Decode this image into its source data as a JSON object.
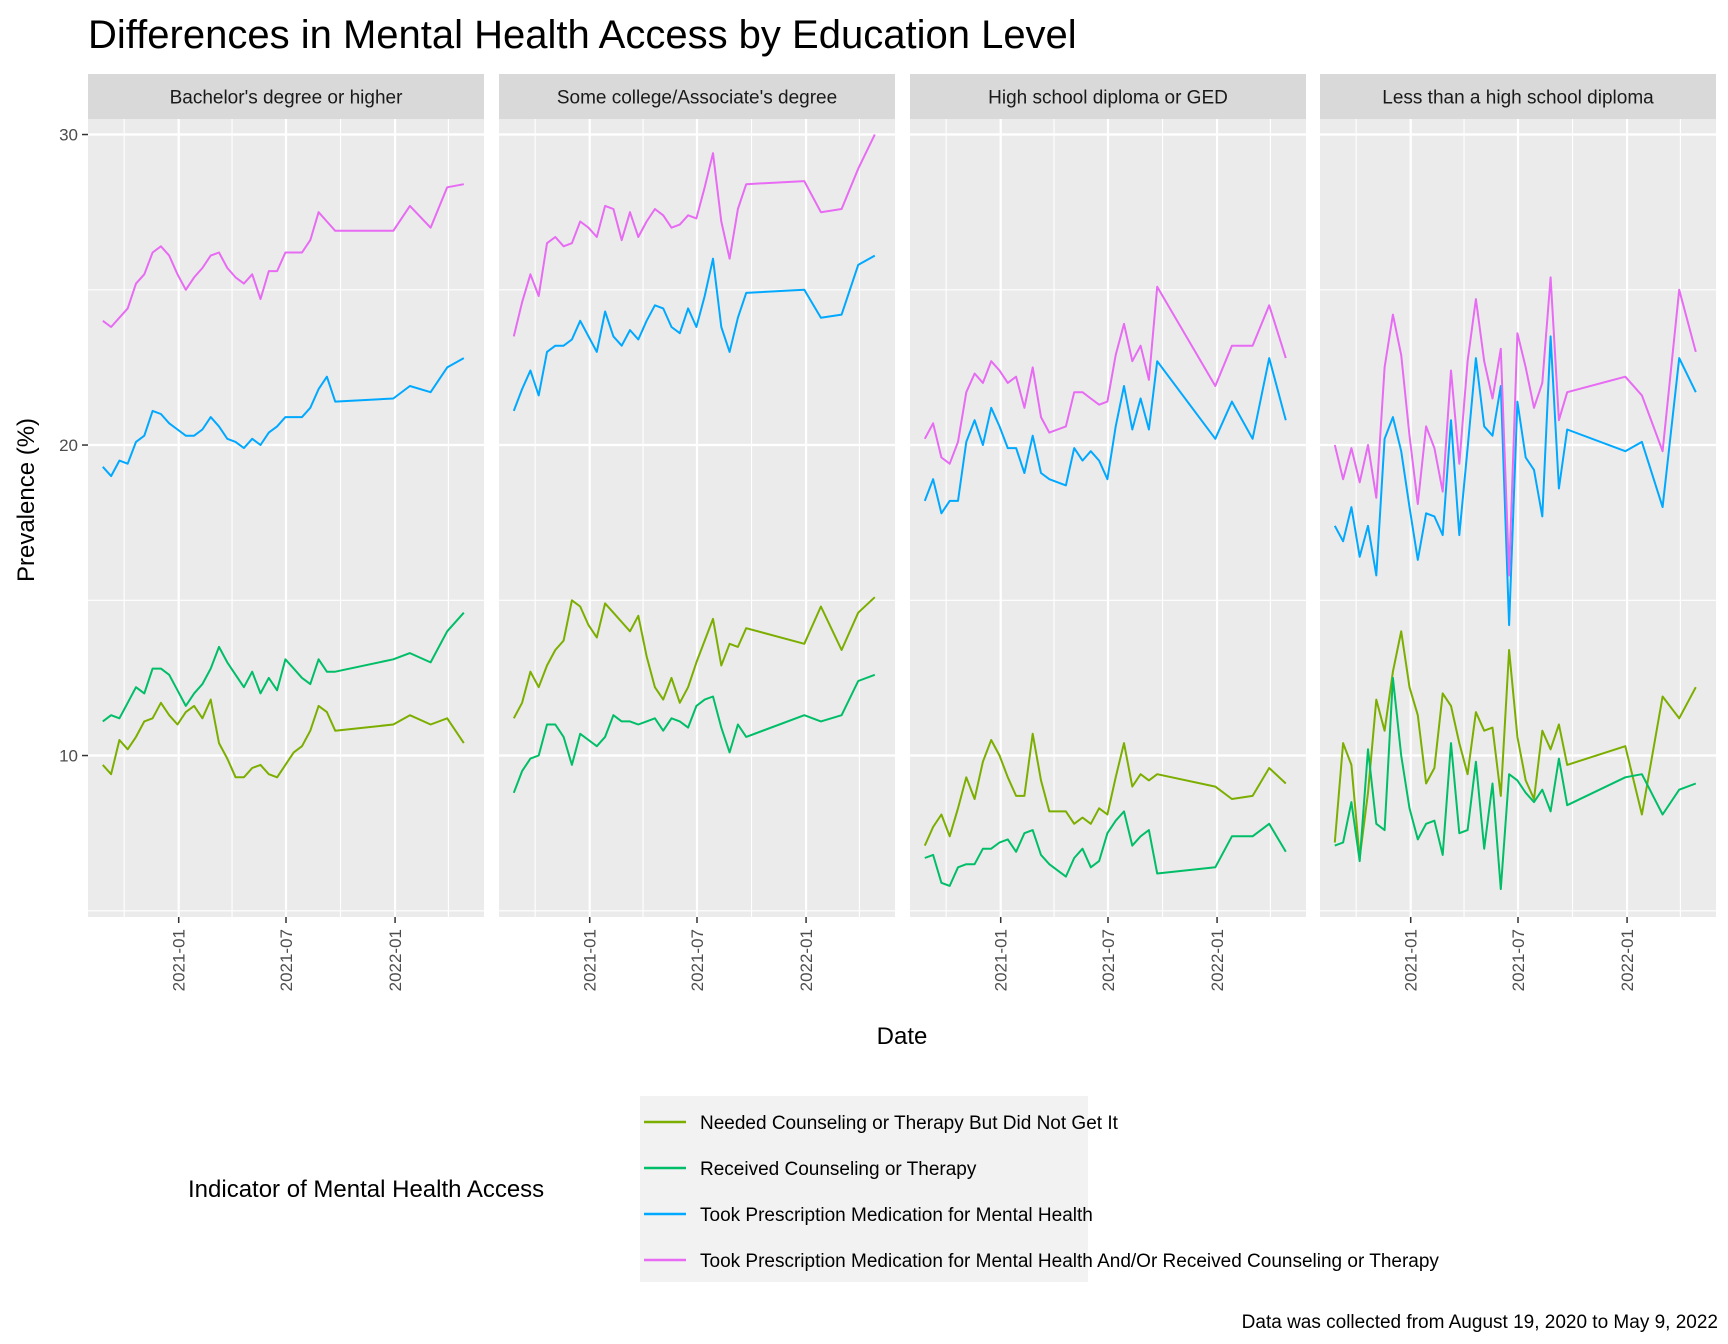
{
  "chart_data": {
    "type": "line",
    "title": "Differences in Mental Health Access by Education Level",
    "xlabel": "Date",
    "ylabel": "Prevalence (%)",
    "caption": "Data was collected from August 19, 2020 to May 9, 2022",
    "xlim": [
      "2020-08-01",
      "2022-05-31"
    ],
    "ylim": [
      4.8,
      30.5
    ],
    "y_ticks": [
      10,
      20,
      30
    ],
    "x_ticks": [
      "2021-01",
      "2021-07",
      "2022-01"
    ],
    "grid": true,
    "legend": {
      "title": "Indicator of Mental Health Access",
      "position": "bottom"
    },
    "series_defs": [
      {
        "key": "needed",
        "name": "Needed Counseling or Therapy But Did Not Get It",
        "color": "#7CAE00"
      },
      {
        "key": "received",
        "name": "Received Counseling or Therapy",
        "color": "#00BE67"
      },
      {
        "key": "prescription",
        "name": "Took Prescription Medication for Mental Health",
        "color": "#00A9FF"
      },
      {
        "key": "either",
        "name": "Took Prescription Medication for Mental Health And/Or Received Counseling or Therapy",
        "color": "#E76BF3"
      }
    ],
    "dates": [
      "2020-08-26",
      "2020-09-09",
      "2020-09-23",
      "2020-10-07",
      "2020-10-21",
      "2020-11-04",
      "2020-11-18",
      "2020-12-02",
      "2020-12-16",
      "2020-12-30",
      "2021-01-13",
      "2021-01-27",
      "2021-02-10",
      "2021-02-24",
      "2021-03-10",
      "2021-03-24",
      "2021-04-07",
      "2021-04-21",
      "2021-05-05",
      "2021-05-19",
      "2021-06-02",
      "2021-06-16",
      "2021-06-30",
      "2021-07-14",
      "2021-07-28",
      "2021-08-11",
      "2021-08-25",
      "2021-09-08",
      "2021-09-22",
      "2021-12-29",
      "2022-01-26",
      "2022-03-02",
      "2022-03-30",
      "2022-04-27"
    ],
    "panels": [
      {
        "label": "Bachelor's degree or higher",
        "series": {
          "needed": [
            9.7,
            9.4,
            10.5,
            10.2,
            10.6,
            11.1,
            11.2,
            11.7,
            11.3,
            11.0,
            11.4,
            11.6,
            11.2,
            11.8,
            10.4,
            9.9,
            9.3,
            9.3,
            9.6,
            9.7,
            9.4,
            9.3,
            9.7,
            10.1,
            10.3,
            10.8,
            11.6,
            11.4,
            10.8,
            11.0,
            11.3,
            11.0,
            11.2,
            10.4
          ],
          "received": [
            11.1,
            11.3,
            11.2,
            11.7,
            12.2,
            12.0,
            12.8,
            12.8,
            12.6,
            12.1,
            11.6,
            12.0,
            12.3,
            12.8,
            13.5,
            13.0,
            12.6,
            12.2,
            12.7,
            12.0,
            12.5,
            12.1,
            13.1,
            12.8,
            12.5,
            12.3,
            13.1,
            12.7,
            12.7,
            13.1,
            13.3,
            13.0,
            14.0,
            14.6
          ],
          "prescription": [
            19.3,
            19.0,
            19.5,
            19.4,
            20.1,
            20.3,
            21.1,
            21.0,
            20.7,
            20.5,
            20.3,
            20.3,
            20.5,
            20.9,
            20.6,
            20.2,
            20.1,
            19.9,
            20.2,
            20.0,
            20.4,
            20.6,
            20.9,
            20.9,
            20.9,
            21.2,
            21.8,
            22.2,
            21.4,
            21.5,
            21.9,
            21.7,
            22.5,
            22.8
          ],
          "either": [
            24.0,
            23.8,
            24.1,
            24.4,
            25.2,
            25.5,
            26.2,
            26.4,
            26.1,
            25.5,
            25.0,
            25.4,
            25.7,
            26.1,
            26.2,
            25.7,
            25.4,
            25.2,
            25.5,
            24.7,
            25.6,
            25.6,
            26.2,
            26.2,
            26.2,
            26.6,
            27.5,
            27.2,
            26.9,
            26.9,
            27.7,
            27.0,
            28.3,
            28.4
          ]
        }
      },
      {
        "label": "Some college/Associate's degree",
        "series": {
          "needed": [
            11.2,
            11.7,
            12.7,
            12.2,
            12.9,
            13.4,
            13.7,
            15.0,
            14.8,
            14.2,
            13.8,
            14.9,
            14.6,
            14.3,
            14.0,
            14.5,
            13.2,
            12.2,
            11.8,
            12.5,
            11.7,
            12.2,
            13.0,
            13.7,
            14.4,
            12.9,
            13.6,
            13.5,
            14.1,
            13.6,
            14.8,
            13.4,
            14.6,
            15.1
          ],
          "received": [
            8.8,
            9.5,
            9.9,
            10.0,
            11.0,
            11.0,
            10.6,
            9.7,
            10.7,
            10.5,
            10.3,
            10.6,
            11.3,
            11.1,
            11.1,
            11.0,
            11.1,
            11.2,
            10.8,
            11.2,
            11.1,
            10.9,
            11.6,
            11.8,
            11.9,
            10.9,
            10.1,
            11.0,
            10.6,
            11.3,
            11.1,
            11.3,
            12.4,
            12.6
          ],
          "prescription": [
            21.1,
            21.8,
            22.4,
            21.6,
            23.0,
            23.2,
            23.2,
            23.4,
            24.0,
            23.5,
            23.0,
            24.3,
            23.5,
            23.2,
            23.7,
            23.4,
            24.0,
            24.5,
            24.4,
            23.8,
            23.6,
            24.4,
            23.8,
            24.8,
            26.0,
            23.8,
            23.0,
            24.1,
            24.9,
            25.0,
            24.1,
            24.2,
            25.8,
            26.1
          ],
          "either": [
            23.5,
            24.6,
            25.5,
            24.8,
            26.5,
            26.7,
            26.4,
            26.5,
            27.2,
            27.0,
            26.7,
            27.7,
            27.6,
            26.6,
            27.5,
            26.7,
            27.2,
            27.6,
            27.4,
            27.0,
            27.1,
            27.4,
            27.3,
            28.3,
            29.4,
            27.2,
            26.0,
            27.6,
            28.4,
            28.5,
            27.5,
            27.6,
            28.9,
            30.0
          ]
        }
      },
      {
        "label": "High school diploma or GED",
        "series": {
          "needed": [
            7.1,
            7.7,
            8.1,
            7.4,
            8.3,
            9.3,
            8.6,
            9.8,
            10.5,
            10.0,
            9.3,
            8.7,
            8.7,
            10.7,
            9.2,
            8.2,
            8.2,
            8.2,
            7.8,
            8.0,
            7.8,
            8.3,
            8.1,
            9.3,
            10.4,
            9.0,
            9.4,
            9.2,
            9.4,
            9.0,
            8.6,
            8.7,
            9.6,
            9.1
          ],
          "received": [
            6.7,
            6.8,
            5.9,
            5.8,
            6.4,
            6.5,
            6.5,
            7.0,
            7.0,
            7.2,
            7.3,
            6.9,
            7.5,
            7.6,
            6.8,
            6.5,
            6.3,
            6.1,
            6.7,
            7.0,
            6.4,
            6.6,
            7.5,
            7.9,
            8.2,
            7.1,
            7.4,
            7.6,
            6.2,
            6.4,
            7.4,
            7.4,
            7.8,
            6.9
          ],
          "prescription": [
            18.2,
            18.9,
            17.8,
            18.2,
            18.2,
            20.1,
            20.8,
            20.0,
            21.2,
            20.6,
            19.9,
            19.9,
            19.1,
            20.3,
            19.1,
            18.9,
            18.8,
            18.7,
            19.9,
            19.5,
            19.8,
            19.5,
            18.9,
            20.6,
            21.9,
            20.5,
            21.5,
            20.5,
            22.7,
            20.2,
            21.4,
            20.2,
            22.8,
            20.8
          ],
          "either": [
            20.2,
            20.7,
            19.6,
            19.4,
            20.1,
            21.7,
            22.3,
            22.0,
            22.7,
            22.4,
            22.0,
            22.2,
            21.2,
            22.5,
            20.9,
            20.4,
            20.5,
            20.6,
            21.7,
            21.7,
            21.5,
            21.3,
            21.4,
            22.9,
            23.9,
            22.7,
            23.2,
            22.1,
            25.1,
            21.9,
            23.2,
            23.2,
            24.5,
            22.8
          ]
        }
      },
      {
        "label": "Less than a high school diploma",
        "series": {
          "needed": [
            7.2,
            10.4,
            9.7,
            6.7,
            8.8,
            11.8,
            10.8,
            12.7,
            14.0,
            12.2,
            11.3,
            9.1,
            9.6,
            12.0,
            11.6,
            10.4,
            9.4,
            11.4,
            10.8,
            10.9,
            8.7,
            13.4,
            10.6,
            9.2,
            8.6,
            10.8,
            10.2,
            11.0,
            9.7,
            10.3,
            8.1,
            11.9,
            11.2,
            12.2
          ],
          "received": [
            7.1,
            7.2,
            8.5,
            6.6,
            10.2,
            7.8,
            7.6,
            12.5,
            10.0,
            8.3,
            7.3,
            7.8,
            7.9,
            6.8,
            10.4,
            7.5,
            7.6,
            9.8,
            7.0,
            9.1,
            5.7,
            9.4,
            9.2,
            8.8,
            8.5,
            8.9,
            8.2,
            9.9,
            8.4,
            9.3,
            9.4,
            8.1,
            8.9,
            9.1
          ],
          "prescription": [
            17.4,
            16.9,
            18.0,
            16.4,
            17.4,
            15.8,
            20.2,
            20.9,
            19.8,
            18.0,
            16.3,
            17.8,
            17.7,
            17.1,
            20.8,
            17.1,
            19.9,
            22.8,
            20.6,
            20.3,
            21.9,
            14.2,
            21.4,
            19.6,
            19.2,
            17.7,
            23.5,
            18.6,
            20.5,
            19.8,
            20.1,
            18.0,
            22.8,
            21.7
          ],
          "either": [
            20.0,
            18.9,
            19.9,
            18.8,
            20.0,
            18.3,
            22.5,
            24.2,
            22.9,
            20.3,
            18.1,
            20.6,
            19.9,
            18.5,
            22.4,
            19.4,
            22.7,
            24.7,
            22.7,
            21.5,
            23.1,
            15.8,
            23.6,
            22.5,
            21.2,
            22.0,
            25.4,
            20.8,
            21.7,
            22.2,
            21.6,
            19.8,
            25.0,
            23.0
          ]
        }
      }
    ]
  }
}
